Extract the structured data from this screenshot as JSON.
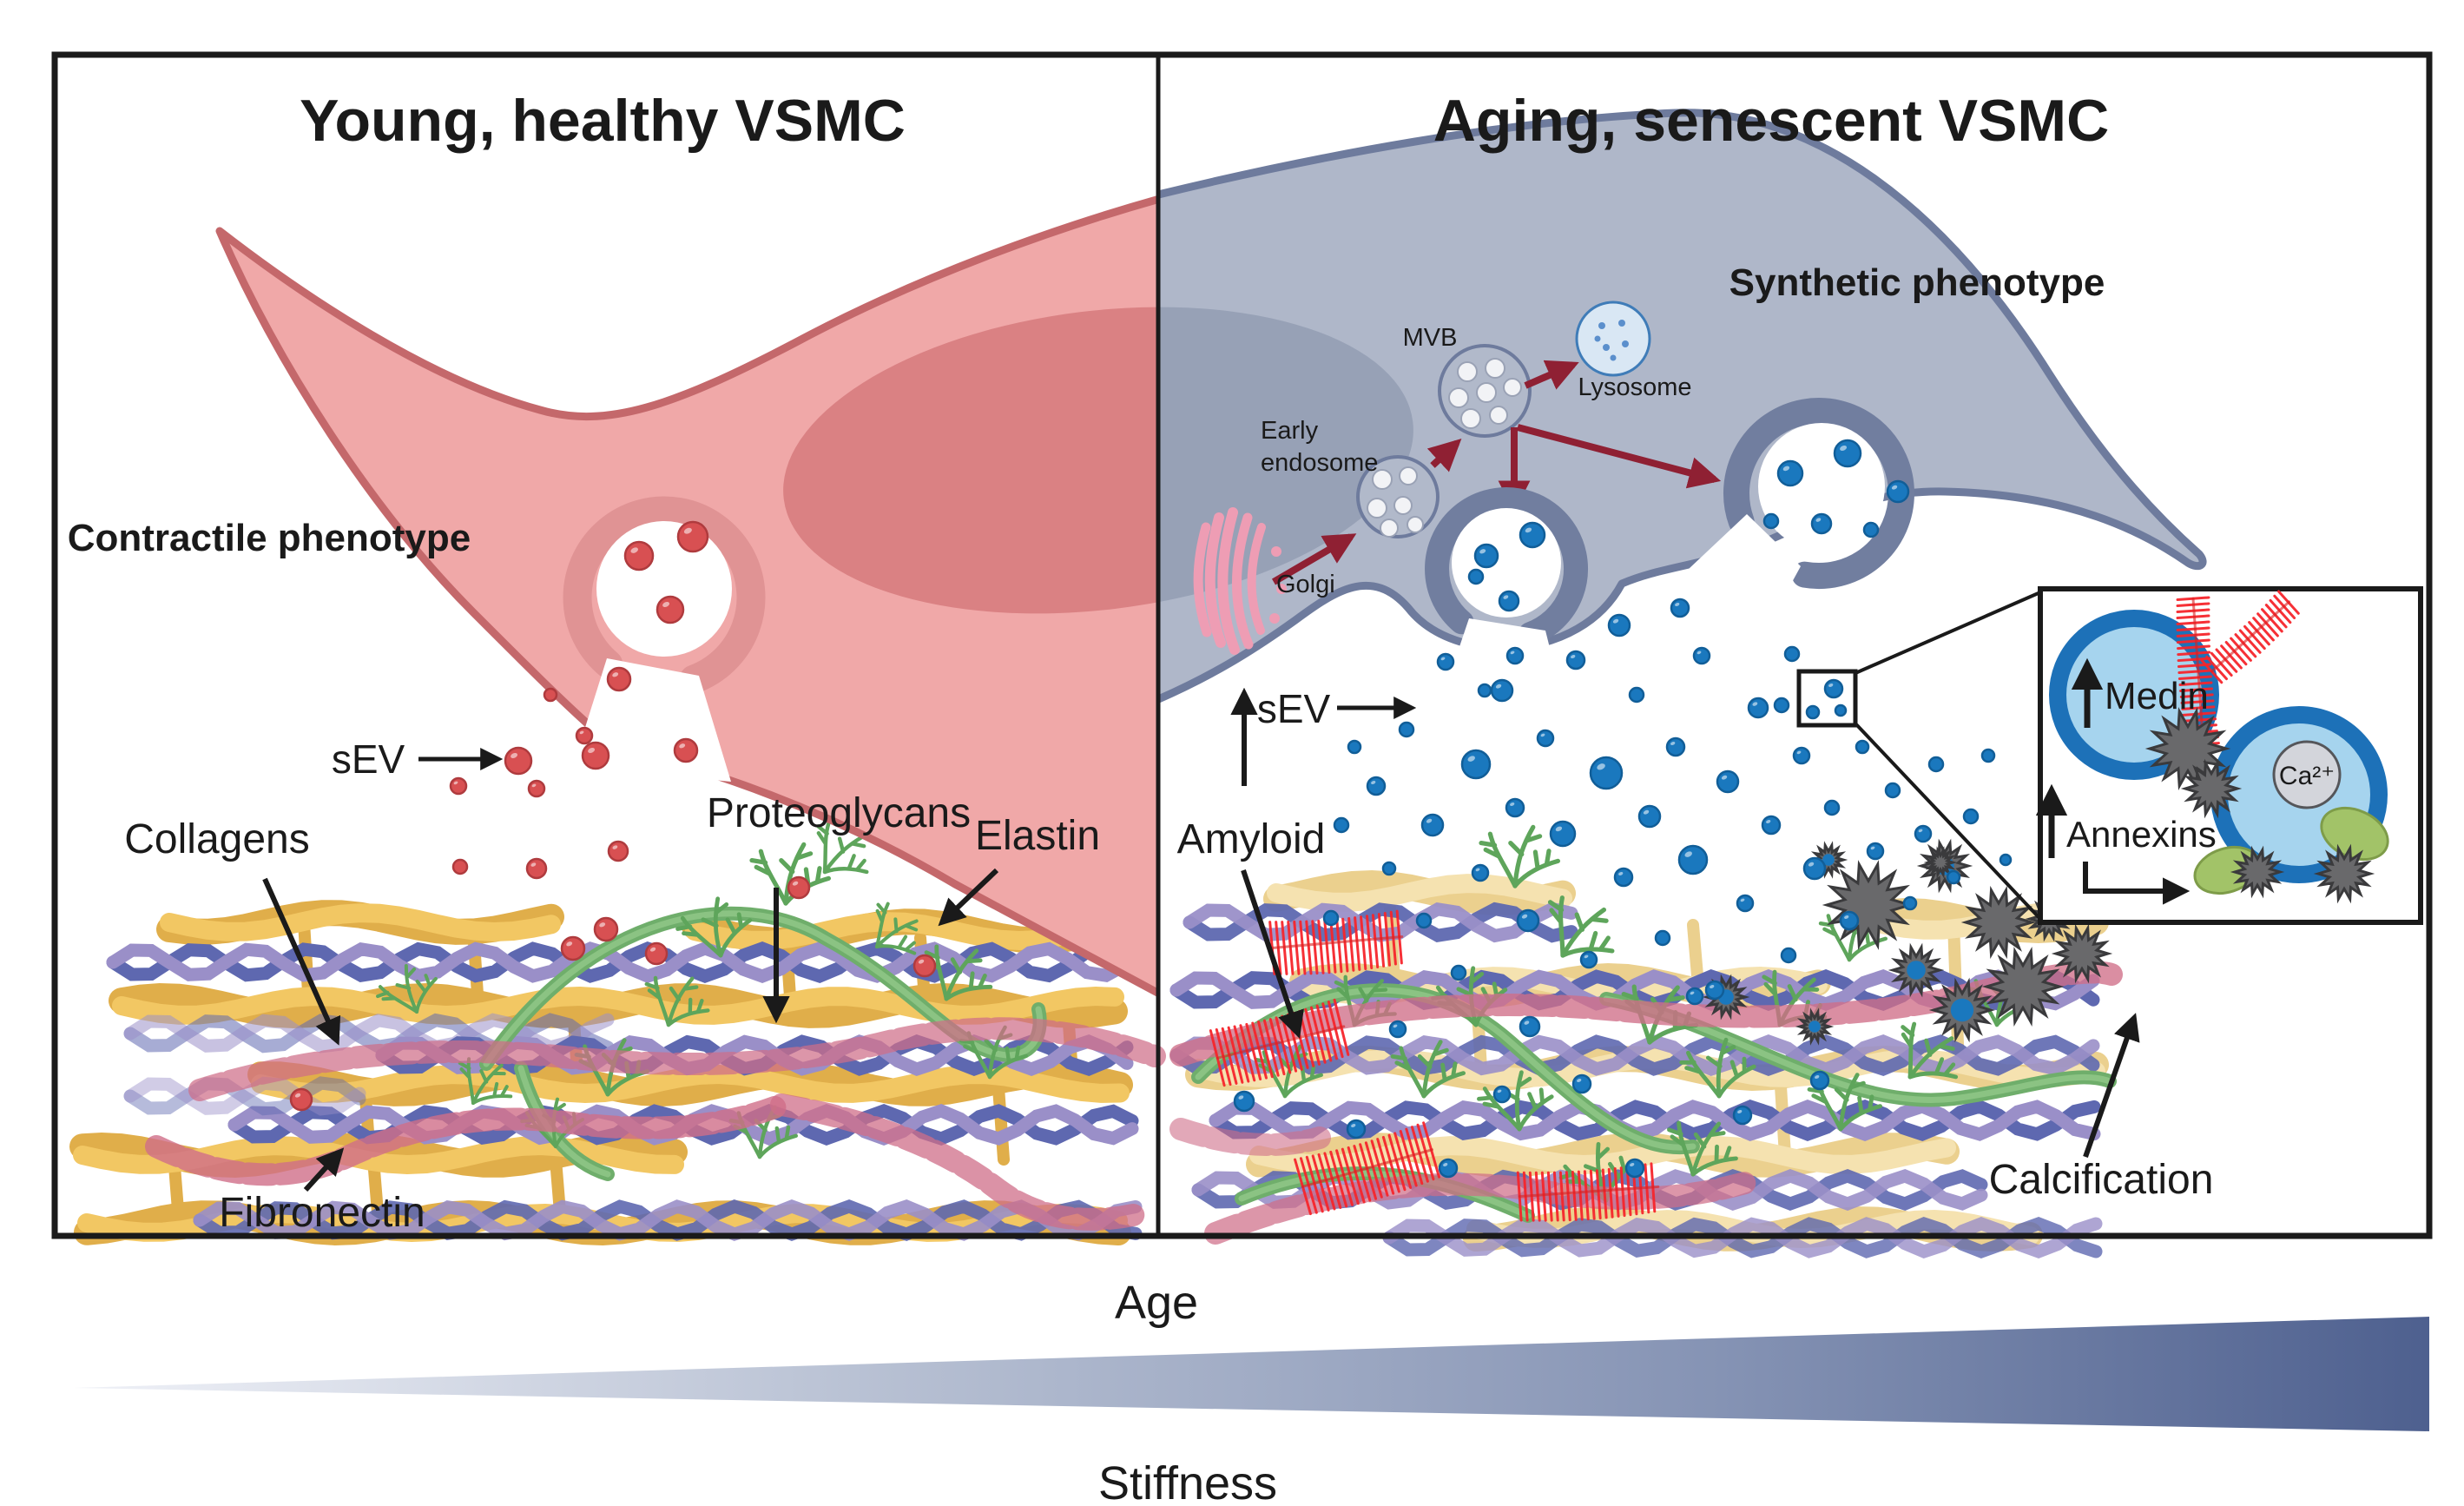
{
  "left": {
    "title": "Young, healthy VSMC",
    "phenotype": "Contractile phenotype",
    "sev": "sEV",
    "collagens": "Collagens",
    "proteoglycans": "Proteoglycans",
    "elastin": "Elastin",
    "fibronectin": "Fibronectin"
  },
  "right": {
    "title": "Aging, senescent VSMC",
    "phenotype": "Synthetic phenotype",
    "sev": "sEV",
    "mvb": "MVB",
    "lysosome": "Lysosome",
    "early_endosome_line1": "Early",
    "early_endosome_line2": "endosome",
    "golgi": "Golgi",
    "amyloid": "Amyloid",
    "calcification": "Calcification",
    "inset": {
      "medin": "Medin",
      "annexins": "Annexins",
      "calcium": "Ca²⁺"
    }
  },
  "footer": {
    "age": "Age",
    "stiffness": "Stiffness"
  },
  "colors": {
    "title_red": "#C35B5F",
    "title_blue": "#2E5878",
    "cell_left_fill": "#F0A8A8",
    "cell_left_stroke": "#C4686B",
    "nucleus_left": "#DA8183",
    "cup_left_ring": "#E09394",
    "vesicle_red": "#D85052",
    "vesicle_red_stroke": "#AF3B3E",
    "cell_right_fill": "#AFB7C9",
    "cell_right_stroke": "#6E7B9D",
    "nucleus_right": "#97A1B6",
    "vesicle_blue": "#1A78BE",
    "vesicle_blue_stroke": "#115E98",
    "elastin_left": "#F2C763",
    "elastin_right": "#F5E2B0",
    "collagen_a": "#5E68B0",
    "collagen_b": "#9A8FC8",
    "proteoglycan": "#6FAE6B",
    "fibronectin": "#CF6E88",
    "amyloid_red": "#F5252B",
    "star_gray": "#69696B",
    "annexin_green": "#A2C368",
    "lysosome_fill": "#D9E7F4",
    "lysosome_stroke": "#3F7CB8",
    "golgi_pink": "#EE9DB4",
    "arrow_dark_red": "#8F2033",
    "triangle_dark": "#4E608F"
  }
}
